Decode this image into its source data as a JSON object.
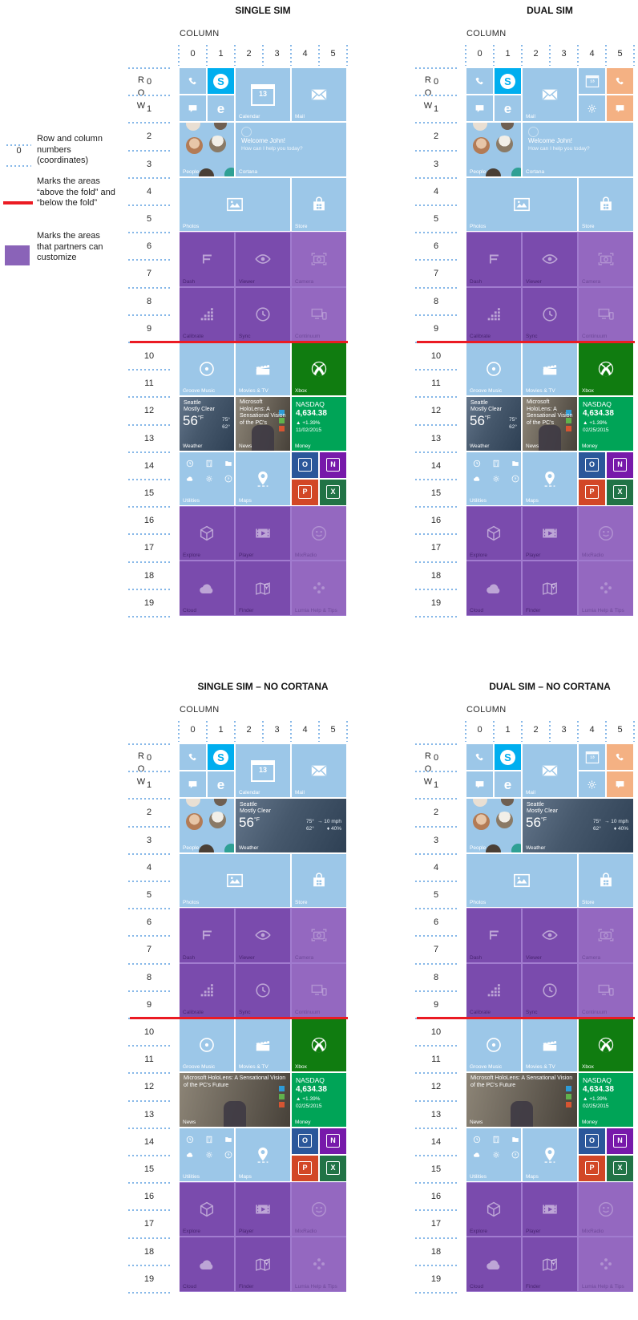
{
  "legend": {
    "sample_number": "0",
    "items": [
      {
        "key": "coordinates",
        "label": "Row and column numbers (coordinates)"
      },
      {
        "key": "fold",
        "label": "Marks the areas “above the fold” and “below the fold”"
      },
      {
        "key": "partners",
        "label": "Marks the areas that partners can customize"
      }
    ]
  },
  "axis": {
    "column_label": "COLUMN",
    "row_label": "ROW",
    "columns": [
      "0",
      "1",
      "2",
      "3",
      "4",
      "5"
    ],
    "rows": [
      "0",
      "1",
      "2",
      "3",
      "4",
      "5",
      "6",
      "7",
      "8",
      "9",
      "10",
      "11",
      "12",
      "13",
      "14",
      "15",
      "16",
      "17",
      "18",
      "19"
    ]
  },
  "colors": {
    "lightblue": "#9CC7E8",
    "skype": "#00AEEF",
    "orange": "#F4B183",
    "xbox": "#107C10",
    "money": "#00A457",
    "purple": "#7A4BAD",
    "purple_faded": "#9468C0",
    "purple_band": "#A17CCF",
    "legend_purple": "#8A63B8",
    "fold_red": "#EB1B23",
    "dotted_blue": "#85B7E8",
    "outlook": "#2B579A",
    "onenote": "#7719AA",
    "powerpoint": "#D24726",
    "excel": "#217346",
    "chip_blue": "#2E9BD6",
    "chip_green": "#61B24C",
    "chip_red": "#D65532"
  },
  "glyphs": {
    "skype": "S",
    "edge": "e",
    "calendar_day": "13",
    "outlook": "O",
    "onenote": "N",
    "powerpoint": "P",
    "excel": "X"
  },
  "texts": {
    "cortana": {
      "greeting": "Welcome John!",
      "question": "How can I help you today?"
    },
    "weather": {
      "city": "Seattle",
      "condition": "Mostly Clear",
      "temp": "56",
      "unit": "°F",
      "high": "75°",
      "low": "62°",
      "wind": "→ 10 mph",
      "humidity": "♦ 40%"
    },
    "news": {
      "headline_short": "Microsoft HoloLens: A Sensational Vision of the PC's",
      "headline_long": "Microsoft HoloLens: A Sensational Vision of the PC's Future"
    },
    "money": {
      "index": "NASDAQ",
      "value": "4,634.38",
      "change": "▲ +1.39%"
    }
  },
  "apps": {
    "phone": {
      "color": "lightblue",
      "icon": "phone"
    },
    "skype": {
      "color": "skype",
      "special": "skype"
    },
    "messaging": {
      "color": "lightblue",
      "icon": "messaging"
    },
    "edge": {
      "color": "lightblue",
      "special": "edge"
    },
    "calendar": {
      "color": "lightblue",
      "special": "calendar",
      "label": "Calendar"
    },
    "calendar_sm": {
      "color": "lightblue",
      "special": "calendar"
    },
    "settings": {
      "color": "lightblue",
      "icon": "gear"
    },
    "phone2": {
      "color": "orange",
      "icon": "phone"
    },
    "messaging2": {
      "color": "orange",
      "icon": "messaging"
    },
    "mail": {
      "color": "lightblue",
      "icon": "mail",
      "label": "Mail"
    },
    "people": {
      "color": "lightblue",
      "special": "people",
      "label": "People"
    },
    "cortana": {
      "color": "lightblue",
      "special": "cortana",
      "label": "Cortana"
    },
    "photos": {
      "color": "lightblue",
      "icon": "photos",
      "label": "Photos"
    },
    "store": {
      "color": "lightblue",
      "icon": "store",
      "label": "Store"
    },
    "dash": {
      "purple": true,
      "icon": "dash",
      "label": "Dash"
    },
    "viewer": {
      "purple": true,
      "icon": "viewer",
      "label": "Viewer"
    },
    "camera": {
      "purple": true,
      "faded": true,
      "icon": "camera",
      "label": "Camera"
    },
    "calibrate": {
      "purple": true,
      "icon": "calibrate",
      "label": "Calibrate"
    },
    "sync": {
      "purple": true,
      "icon": "sync",
      "label": "Sync"
    },
    "continuum": {
      "purple": true,
      "faded": true,
      "icon": "continuum",
      "label": "Continuum"
    },
    "groove": {
      "color": "lightblue",
      "icon": "groove",
      "label": "Groove Music"
    },
    "movies": {
      "color": "lightblue",
      "icon": "movies",
      "label": "Movies & TV"
    },
    "xbox": {
      "color": "xbox",
      "icon": "xbox",
      "label": "Xbox"
    },
    "weather2": {
      "special": "weather",
      "label": "Weather"
    },
    "weather4": {
      "special": "weather",
      "label": "Weather"
    },
    "news2": {
      "special": "news",
      "headline": "headline_short",
      "label": "News"
    },
    "news4": {
      "special": "news",
      "headline": "headline_long",
      "label": "News"
    },
    "money": {
      "color": "money",
      "special": "money",
      "label": "Money"
    },
    "utilities": {
      "color": "lightblue",
      "special": "utilities",
      "label": "Utilities"
    },
    "maps": {
      "color": "lightblue",
      "icon": "maps",
      "label": "Maps"
    },
    "outlook": {
      "color": "outlook",
      "special": "office"
    },
    "onenote": {
      "color": "onenote",
      "special": "office"
    },
    "powerpoint": {
      "color": "powerpoint",
      "special": "office"
    },
    "excel": {
      "color": "excel",
      "special": "office"
    },
    "explore": {
      "purple": true,
      "icon": "explore",
      "label": "Explore"
    },
    "player": {
      "purple": true,
      "icon": "player",
      "label": "Player"
    },
    "mixradio": {
      "purple": true,
      "faded": true,
      "icon": "mixradio",
      "label": "MixRadio"
    },
    "cloud": {
      "purple": true,
      "icon": "cloud",
      "label": "Cloud"
    },
    "finder": {
      "purple": true,
      "icon": "finder",
      "label": "Finder"
    },
    "lumia": {
      "purple": true,
      "faded": true,
      "icon": "lumia",
      "label": "Lumia Help & Tips"
    }
  },
  "tilesets": {
    "single_cortana": [
      [
        0,
        0,
        1,
        1,
        "phone"
      ],
      [
        0,
        1,
        1,
        1,
        "skype"
      ],
      [
        1,
        0,
        1,
        1,
        "messaging"
      ],
      [
        1,
        1,
        1,
        1,
        "edge"
      ],
      [
        0,
        2,
        2,
        2,
        "calendar"
      ],
      [
        0,
        4,
        2,
        2,
        "mail"
      ],
      [
        2,
        0,
        2,
        2,
        "people"
      ],
      [
        2,
        2,
        2,
        4,
        "cortana"
      ],
      [
        4,
        0,
        2,
        4,
        "photos"
      ],
      [
        4,
        4,
        2,
        2,
        "store"
      ],
      [
        6,
        0,
        2,
        2,
        "dash"
      ],
      [
        6,
        2,
        2,
        2,
        "viewer"
      ],
      [
        6,
        4,
        2,
        2,
        "camera"
      ],
      [
        8,
        0,
        2,
        2,
        "calibrate"
      ],
      [
        8,
        2,
        2,
        2,
        "sync"
      ],
      [
        8,
        4,
        2,
        2,
        "continuum"
      ],
      [
        10,
        0,
        2,
        2,
        "groove"
      ],
      [
        10,
        2,
        2,
        2,
        "movies"
      ],
      [
        10,
        4,
        2,
        2,
        "xbox"
      ],
      [
        12,
        0,
        2,
        2,
        "weather2"
      ],
      [
        12,
        2,
        2,
        2,
        "news2"
      ],
      [
        12,
        4,
        2,
        2,
        "money"
      ],
      [
        14,
        0,
        2,
        2,
        "utilities"
      ],
      [
        14,
        2,
        2,
        2,
        "maps"
      ],
      [
        14,
        4,
        1,
        1,
        "outlook"
      ],
      [
        14,
        5,
        1,
        1,
        "onenote"
      ],
      [
        15,
        4,
        1,
        1,
        "powerpoint"
      ],
      [
        15,
        5,
        1,
        1,
        "excel"
      ],
      [
        16,
        0,
        2,
        2,
        "explore"
      ],
      [
        16,
        2,
        2,
        2,
        "player"
      ],
      [
        16,
        4,
        2,
        2,
        "mixradio"
      ],
      [
        18,
        0,
        2,
        2,
        "cloud"
      ],
      [
        18,
        2,
        2,
        2,
        "finder"
      ],
      [
        18,
        4,
        2,
        2,
        "lumia"
      ]
    ],
    "dual_cortana": [
      [
        0,
        0,
        1,
        1,
        "phone"
      ],
      [
        0,
        1,
        1,
        1,
        "skype"
      ],
      [
        1,
        0,
        1,
        1,
        "messaging"
      ],
      [
        1,
        1,
        1,
        1,
        "edge"
      ],
      [
        0,
        2,
        2,
        2,
        "mail"
      ],
      [
        0,
        4,
        1,
        1,
        "calendar_sm"
      ],
      [
        1,
        4,
        1,
        1,
        "settings"
      ],
      [
        0,
        5,
        1,
        1,
        "phone2"
      ],
      [
        1,
        5,
        1,
        1,
        "messaging2"
      ],
      [
        2,
        0,
        2,
        2,
        "people"
      ],
      [
        2,
        2,
        2,
        4,
        "cortana"
      ],
      [
        4,
        0,
        2,
        4,
        "photos"
      ],
      [
        4,
        4,
        2,
        2,
        "store"
      ],
      [
        6,
        0,
        2,
        2,
        "dash"
      ],
      [
        6,
        2,
        2,
        2,
        "viewer"
      ],
      [
        6,
        4,
        2,
        2,
        "camera"
      ],
      [
        8,
        0,
        2,
        2,
        "calibrate"
      ],
      [
        8,
        2,
        2,
        2,
        "sync"
      ],
      [
        8,
        4,
        2,
        2,
        "continuum"
      ],
      [
        10,
        0,
        2,
        2,
        "groove"
      ],
      [
        10,
        2,
        2,
        2,
        "movies"
      ],
      [
        10,
        4,
        2,
        2,
        "xbox"
      ],
      [
        12,
        0,
        2,
        2,
        "weather2"
      ],
      [
        12,
        2,
        2,
        2,
        "news2"
      ],
      [
        12,
        4,
        2,
        2,
        "money"
      ],
      [
        14,
        0,
        2,
        2,
        "utilities"
      ],
      [
        14,
        2,
        2,
        2,
        "maps"
      ],
      [
        14,
        4,
        1,
        1,
        "outlook"
      ],
      [
        14,
        5,
        1,
        1,
        "onenote"
      ],
      [
        15,
        4,
        1,
        1,
        "powerpoint"
      ],
      [
        15,
        5,
        1,
        1,
        "excel"
      ],
      [
        16,
        0,
        2,
        2,
        "explore"
      ],
      [
        16,
        2,
        2,
        2,
        "player"
      ],
      [
        16,
        4,
        2,
        2,
        "mixradio"
      ],
      [
        18,
        0,
        2,
        2,
        "cloud"
      ],
      [
        18,
        2,
        2,
        2,
        "finder"
      ],
      [
        18,
        4,
        2,
        2,
        "lumia"
      ]
    ],
    "single_no_cortana": [
      [
        0,
        0,
        1,
        1,
        "phone"
      ],
      [
        0,
        1,
        1,
        1,
        "skype"
      ],
      [
        1,
        0,
        1,
        1,
        "messaging"
      ],
      [
        1,
        1,
        1,
        1,
        "edge"
      ],
      [
        0,
        2,
        2,
        2,
        "calendar"
      ],
      [
        0,
        4,
        2,
        2,
        "mail"
      ],
      [
        2,
        0,
        2,
        2,
        "people"
      ],
      [
        2,
        2,
        2,
        4,
        "weather4"
      ],
      [
        4,
        0,
        2,
        4,
        "photos"
      ],
      [
        4,
        4,
        2,
        2,
        "store"
      ],
      [
        6,
        0,
        2,
        2,
        "dash"
      ],
      [
        6,
        2,
        2,
        2,
        "viewer"
      ],
      [
        6,
        4,
        2,
        2,
        "camera"
      ],
      [
        8,
        0,
        2,
        2,
        "calibrate"
      ],
      [
        8,
        2,
        2,
        2,
        "sync"
      ],
      [
        8,
        4,
        2,
        2,
        "continuum"
      ],
      [
        10,
        0,
        2,
        2,
        "groove"
      ],
      [
        10,
        2,
        2,
        2,
        "movies"
      ],
      [
        10,
        4,
        2,
        2,
        "xbox"
      ],
      [
        12,
        0,
        2,
        4,
        "news4"
      ],
      [
        12,
        4,
        2,
        2,
        "money"
      ],
      [
        14,
        0,
        2,
        2,
        "utilities"
      ],
      [
        14,
        2,
        2,
        2,
        "maps"
      ],
      [
        14,
        4,
        1,
        1,
        "outlook"
      ],
      [
        14,
        5,
        1,
        1,
        "onenote"
      ],
      [
        15,
        4,
        1,
        1,
        "powerpoint"
      ],
      [
        15,
        5,
        1,
        1,
        "excel"
      ],
      [
        16,
        0,
        2,
        2,
        "explore"
      ],
      [
        16,
        2,
        2,
        2,
        "player"
      ],
      [
        16,
        4,
        2,
        2,
        "mixradio"
      ],
      [
        18,
        0,
        2,
        2,
        "cloud"
      ],
      [
        18,
        2,
        2,
        2,
        "finder"
      ],
      [
        18,
        4,
        2,
        2,
        "lumia"
      ]
    ],
    "dual_no_cortana": [
      [
        0,
        0,
        1,
        1,
        "phone"
      ],
      [
        0,
        1,
        1,
        1,
        "skype"
      ],
      [
        1,
        0,
        1,
        1,
        "messaging"
      ],
      [
        1,
        1,
        1,
        1,
        "edge"
      ],
      [
        0,
        2,
        2,
        2,
        "mail"
      ],
      [
        0,
        4,
        1,
        1,
        "calendar_sm"
      ],
      [
        1,
        4,
        1,
        1,
        "settings"
      ],
      [
        0,
        5,
        1,
        1,
        "phone2"
      ],
      [
        1,
        5,
        1,
        1,
        "messaging2"
      ],
      [
        2,
        0,
        2,
        2,
        "people"
      ],
      [
        2,
        2,
        2,
        4,
        "weather4"
      ],
      [
        4,
        0,
        2,
        4,
        "photos"
      ],
      [
        4,
        4,
        2,
        2,
        "store"
      ],
      [
        6,
        0,
        2,
        2,
        "dash"
      ],
      [
        6,
        2,
        2,
        2,
        "viewer"
      ],
      [
        6,
        4,
        2,
        2,
        "camera"
      ],
      [
        8,
        0,
        2,
        2,
        "calibrate"
      ],
      [
        8,
        2,
        2,
        2,
        "sync"
      ],
      [
        8,
        4,
        2,
        2,
        "continuum"
      ],
      [
        10,
        0,
        2,
        2,
        "groove"
      ],
      [
        10,
        2,
        2,
        2,
        "movies"
      ],
      [
        10,
        4,
        2,
        2,
        "xbox"
      ],
      [
        12,
        0,
        2,
        4,
        "news4"
      ],
      [
        12,
        4,
        2,
        2,
        "money"
      ],
      [
        14,
        0,
        2,
        2,
        "utilities"
      ],
      [
        14,
        2,
        2,
        2,
        "maps"
      ],
      [
        14,
        4,
        1,
        1,
        "outlook"
      ],
      [
        14,
        5,
        1,
        1,
        "onenote"
      ],
      [
        15,
        4,
        1,
        1,
        "powerpoint"
      ],
      [
        15,
        5,
        1,
        1,
        "excel"
      ],
      [
        16,
        0,
        2,
        2,
        "explore"
      ],
      [
        16,
        2,
        2,
        2,
        "player"
      ],
      [
        16,
        4,
        2,
        2,
        "mixradio"
      ],
      [
        18,
        0,
        2,
        2,
        "cloud"
      ],
      [
        18,
        2,
        2,
        2,
        "finder"
      ],
      [
        18,
        4,
        2,
        2,
        "lumia"
      ]
    ]
  },
  "grids": [
    {
      "id": "single-sim",
      "pos": "tl",
      "title": "SINGLE SIM",
      "tileset": "single_cortana",
      "money_date": "11/02/2015"
    },
    {
      "id": "dual-sim",
      "pos": "tr",
      "title": "DUAL SIM",
      "tileset": "dual_cortana",
      "money_date": "02/25/2015"
    },
    {
      "id": "single-sim-no-cortana",
      "pos": "bl",
      "title": "SINGLE SIM – NO CORTANA",
      "tileset": "single_no_cortana",
      "money_date": "02/25/2015"
    },
    {
      "id": "dual-sim-no-cortana",
      "pos": "br",
      "title": "DUAL SIM – NO CORTANA",
      "tileset": "dual_no_cortana",
      "money_date": "02/25/2015"
    }
  ]
}
